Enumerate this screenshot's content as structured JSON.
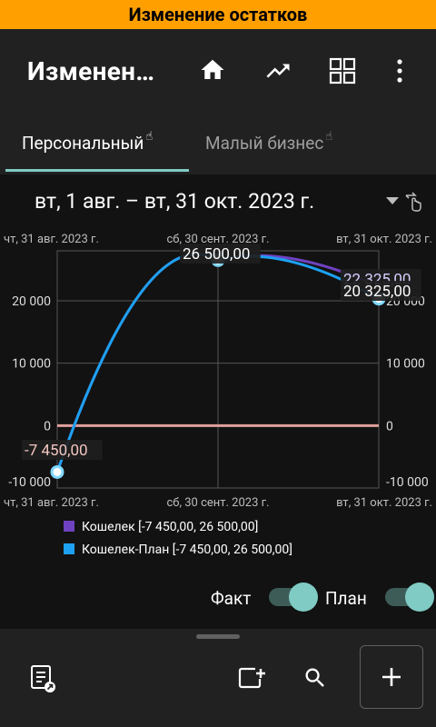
{
  "banner": {
    "title": "Изменение остатков"
  },
  "appbar": {
    "title": "Изменен…"
  },
  "tabs": [
    {
      "label": "Персональный",
      "active": true
    },
    {
      "label": "Малый бизнес",
      "active": false
    }
  ],
  "date_range": {
    "label": "вт, 1 авг. – вт, 31 окт. 2023 г."
  },
  "chart_data": {
    "type": "line",
    "x_ticks": [
      "чт, 31 авг. 2023 г.",
      "сб, 30 сент. 2023 г.",
      "вт, 31 окт. 2023 г."
    ],
    "y_ticks": [
      "20 000",
      "10 000",
      "0",
      "-10 000"
    ],
    "series": [
      {
        "name": "Кошелек [-7 450,00, 26 500,00]",
        "color": "#6f42c1",
        "points": [
          {
            "x": "чт, 31 авг. 2023 г.",
            "y": -7450
          },
          {
            "x": "сб, 30 сент. 2023 г.",
            "y": 26500
          },
          {
            "x": "вт, 31 окт. 2023 г.",
            "y": 22325
          }
        ]
      },
      {
        "name": "Кошелек-План [-7 450,00, 26 500,00]",
        "color": "#1da1f2",
        "points": [
          {
            "x": "чт, 31 авг. 2023 г.",
            "y": -7450
          },
          {
            "x": "сб, 30 сент. 2023 г.",
            "y": 26500
          },
          {
            "x": "вт, 31 окт. 2023 г.",
            "y": 20325
          }
        ]
      }
    ],
    "annotations": [
      "-7 450,00",
      "26 500,00",
      "22 325,00",
      "20 325,00"
    ],
    "zero_line_color": "#e0a09c",
    "ylim": [
      -10000,
      28000
    ]
  },
  "toggles": [
    {
      "label": "Факт",
      "on": true
    },
    {
      "label": "План",
      "on": true
    }
  ],
  "icons": {
    "appbar": [
      "home-icon",
      "trending-up-icon",
      "dashboard-icon",
      "more-vert-icon"
    ],
    "bottom": [
      "report-icon",
      "add-box-icon",
      "search-icon",
      "add-icon"
    ]
  },
  "colors": {
    "accent": "#80cbc4",
    "banner": "#ffa000"
  }
}
